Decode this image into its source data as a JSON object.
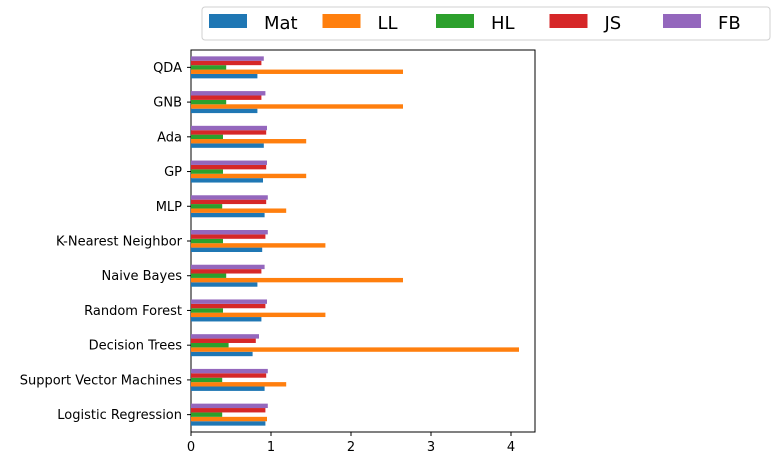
{
  "chart_data": {
    "type": "bar",
    "orientation": "horizontal",
    "categories": [
      "Logistic Regression",
      "Support Vector Machines",
      "Decision Trees",
      "Random Forest",
      "Naive Bayes",
      "K-Nearest Neighbor",
      "MLP",
      "GP",
      "Ada",
      "GNB",
      "QDA"
    ],
    "series": [
      {
        "name": "Mat",
        "color": "#1f77b4",
        "values": [
          0.93,
          0.92,
          0.77,
          0.88,
          0.83,
          0.89,
          0.92,
          0.9,
          0.91,
          0.83,
          0.83
        ]
      },
      {
        "name": "LL",
        "color": "#ff7f0e",
        "values": [
          0.95,
          1.19,
          4.1,
          1.68,
          2.65,
          1.68,
          1.19,
          1.44,
          1.44,
          2.65,
          2.65
        ]
      },
      {
        "name": "HL",
        "color": "#2ca02c",
        "values": [
          0.39,
          0.39,
          0.47,
          0.4,
          0.44,
          0.4,
          0.39,
          0.4,
          0.4,
          0.44,
          0.44
        ]
      },
      {
        "name": "JS",
        "color": "#d62728",
        "values": [
          0.93,
          0.94,
          0.81,
          0.93,
          0.88,
          0.93,
          0.94,
          0.94,
          0.94,
          0.88,
          0.88
        ]
      },
      {
        "name": "FB",
        "color": "#9467bd",
        "values": [
          0.96,
          0.96,
          0.85,
          0.95,
          0.92,
          0.96,
          0.96,
          0.95,
          0.95,
          0.93,
          0.91
        ]
      }
    ],
    "xticks": [
      "0",
      "1",
      "2",
      "3",
      "4"
    ],
    "xlim": [
      0,
      4.3
    ],
    "xlabel": "",
    "ylabel": "",
    "title": "",
    "grid": false,
    "legend": {
      "placement": "top, outside, horizontal"
    }
  }
}
